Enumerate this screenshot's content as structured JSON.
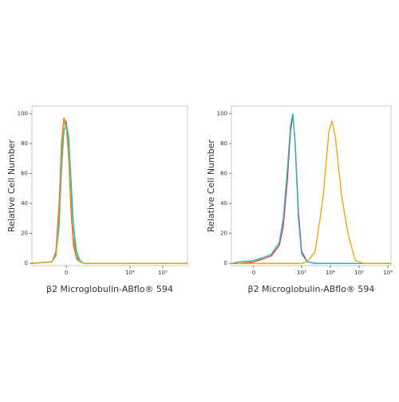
{
  "chart_data": [
    {
      "type": "line",
      "xscale": "biexponential",
      "ylabel": "Relative Cell Number",
      "xlabel": "β2 Microglobulin-ABflo® 594",
      "x": [
        -1260,
        -268,
        -180,
        -119,
        -77,
        -38,
        0,
        38,
        77,
        119,
        179,
        249,
        355,
        490,
        575000
      ],
      "series": [
        {
          "color": "#e8312a",
          "values": [
            0,
            1,
            8,
            40,
            80,
            97,
            92,
            70,
            35,
            12,
            3,
            1,
            0,
            0,
            0
          ]
        },
        {
          "color": "#3cb44b",
          "values": [
            0,
            1,
            6,
            30,
            70,
            94,
            95,
            78,
            45,
            18,
            5,
            1,
            0,
            0,
            0
          ]
        },
        {
          "color": "#1fb8d6",
          "values": [
            0,
            1,
            5,
            25,
            62,
            88,
            93,
            85,
            55,
            25,
            8,
            2,
            0,
            0,
            0
          ]
        },
        {
          "color": "#f0a000",
          "values": [
            0,
            1,
            7,
            35,
            75,
            96,
            90,
            72,
            40,
            15,
            4,
            1,
            0,
            0,
            0
          ]
        }
      ],
      "xlim": [
        -1260,
        575000
      ],
      "xticks": [
        0,
        {
          "value": 10000,
          "label": "10⁴"
        },
        {
          "value": 100000,
          "label": "10⁵"
        }
      ],
      "ylim": [
        -1.5,
        105
      ],
      "yticks": [
        0,
        20,
        40,
        60,
        80,
        100
      ]
    },
    {
      "type": "line",
      "xscale": "biexponential",
      "ylabel": "Relative Cell Number",
      "xlabel": "β2 Microglobulin-ABflo® 594",
      "x": [
        -125,
        -61,
        0,
        36,
        83,
        164,
        228,
        315,
        406,
        494,
        598,
        770,
        1000,
        1570,
        2970,
        5640,
        8860,
        11350,
        14750,
        24550,
        40900,
        73100,
        138500,
        1290000
      ],
      "series": [
        {
          "color": "#e8312a",
          "values": [
            0,
            0,
            1,
            3,
            5,
            12,
            25,
            55,
            88,
            99,
            80,
            35,
            8,
            1,
            0,
            0,
            0,
            0,
            0,
            0,
            0,
            0,
            0,
            0
          ]
        },
        {
          "color": "#1fb8d6",
          "values": [
            0,
            1,
            2,
            4,
            6,
            14,
            30,
            62,
            92,
            100,
            78,
            30,
            6,
            1,
            0,
            0,
            0,
            0,
            0,
            0,
            0,
            0,
            0,
            0
          ]
        },
        {
          "color": "#f0a000",
          "values": [
            0,
            0,
            0,
            0,
            0,
            0,
            0,
            0,
            0,
            0,
            0,
            0,
            0,
            1,
            8,
            45,
            88,
            95,
            85,
            45,
            20,
            2,
            0,
            0
          ]
        }
      ],
      "xlim": [
        -125,
        1290000
      ],
      "xticks": [
        0,
        {
          "value": 1000,
          "label": "10³"
        },
        {
          "value": 10000,
          "label": "10⁴"
        },
        {
          "value": 100000,
          "label": "10⁵"
        },
        {
          "value": 1000000,
          "label": "10⁶"
        }
      ],
      "ylim": [
        -1.5,
        105
      ],
      "yticks": [
        0,
        20,
        40,
        60,
        80,
        100
      ]
    }
  ]
}
